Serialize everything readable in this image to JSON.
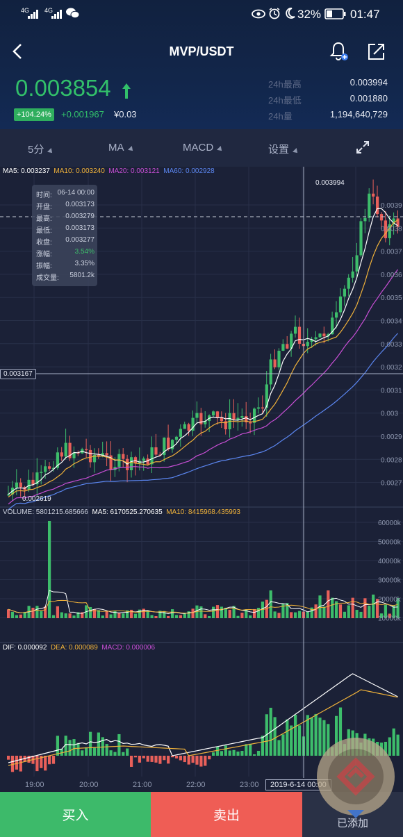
{
  "status_bar": {
    "signal1": "4G",
    "signal2": "4G",
    "battery": "32%",
    "time": "01:47"
  },
  "header": {
    "title": "MVP/USDT"
  },
  "price": {
    "current": "0.003854",
    "change_pct": "+104.24%",
    "change_abs": "+0.001967",
    "cny": "¥0.03",
    "rise_color": "#32c06a"
  },
  "stats": [
    {
      "label": "24h最高",
      "value": "0.003994"
    },
    {
      "label": "24h最低",
      "value": "0.001880"
    },
    {
      "label": "24h量",
      "value": "1,194,640,729"
    }
  ],
  "toolbar": {
    "interval": "5分",
    "indicator1": "MA",
    "indicator2": "MACD",
    "settings": "设置"
  },
  "ma_legend": {
    "ma5": "MA5: 0.003237",
    "ma10": "MA10: 0.003240",
    "ma20": "MA20: 0.003121",
    "ma60": "MA60: 0.002928"
  },
  "colors": {
    "ma5": "#ffffff",
    "ma10": "#f0b23a",
    "ma20": "#c94fd6",
    "ma60": "#5b86f0",
    "up": "#3dbd6b",
    "down": "#e8605a"
  },
  "chart_data": {
    "type": "candlestick",
    "price_axis_ticks": [
      "0.0039",
      "0.0038",
      "0.0037",
      "0.0036",
      "0.0035",
      "0.0034",
      "0.0033",
      "0.0032",
      "0.0031",
      "0.003",
      "0.0029",
      "0.0028",
      "0.0027"
    ],
    "high_label": "0.003994",
    "low_label": "0.002619",
    "crosshair_price": "0.003167",
    "time_ticks": [
      "19:00",
      "20:00",
      "21:00",
      "22:00",
      "23:00"
    ],
    "crosshair_time": "2019-6-14 00:00",
    "volume_legend": {
      "volume": "VOLUME: 5801215.685666",
      "ma5": "MA5: 6170525.270635",
      "ma10": "MA10: 8415968.435993"
    },
    "volume_ticks": [
      "60000k",
      "50000k",
      "40000k",
      "30000k",
      "20000k",
      "10000k"
    ],
    "macd_legend": {
      "dif": "DIF: 0.000092",
      "dea": "DEA: 0.000089",
      "macd": "MACD: 0.000006"
    }
  },
  "tooltip": [
    {
      "k": "时间:",
      "v": "06-14 00:00"
    },
    {
      "k": "开盘:",
      "v": "0.003173"
    },
    {
      "k": "最高:",
      "v": "0.003279"
    },
    {
      "k": "最低:",
      "v": "0.003173"
    },
    {
      "k": "收盘:",
      "v": "0.003277"
    },
    {
      "k": "涨幅:",
      "v": "3.54%"
    },
    {
      "k": "振幅:",
      "v": "3.35%"
    },
    {
      "k": "成交量:",
      "v": "5801.2k"
    }
  ],
  "bottom": {
    "buy": "买入",
    "sell": "卖出",
    "added": "已添加"
  }
}
